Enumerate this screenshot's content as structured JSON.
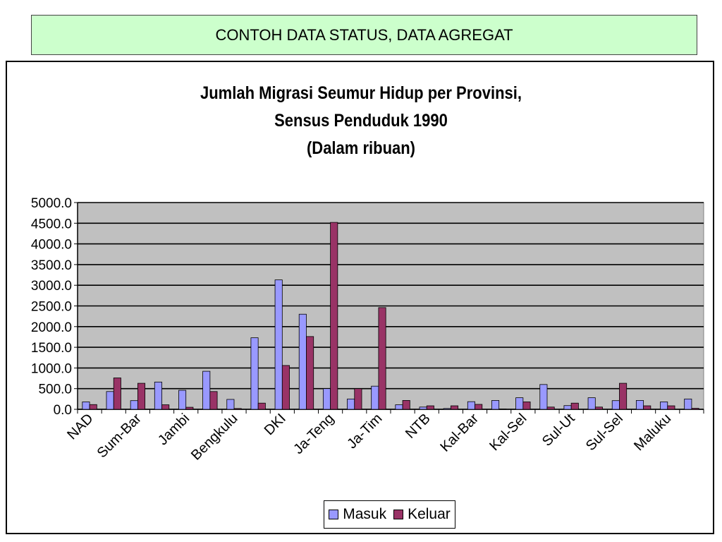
{
  "header": {
    "title": "CONTOH DATA STATUS, DATA AGREGAT"
  },
  "chart_data": {
    "type": "bar",
    "title_lines": [
      "Jumlah Migrasi Seumur Hidup per Provinsi,",
      "Sensus Penduduk 1990",
      "(Dalam ribuan)"
    ],
    "xlabel": "",
    "ylabel": "",
    "ylim": [
      0,
      5000
    ],
    "yticks": [
      "0.0",
      "500.0",
      "1000.0",
      "1500.0",
      "2000.0",
      "2500.0",
      "3000.0",
      "3500.0",
      "4000.0",
      "4500.0",
      "5000.0"
    ],
    "grid": true,
    "legend_position": "bottom",
    "category_labels": [
      "NAD",
      "Sum-Bar",
      "Jambi",
      "Bengkulu",
      "DKI",
      "Ja-Teng",
      "Ja-Tim",
      "NTB",
      "Kal-Bar",
      "Kal-Sel",
      "Sul-Ut",
      "Sul-Sel",
      "Maluku"
    ],
    "category_label_every": 2,
    "series": [
      {
        "name": "Masuk",
        "color": "#9999ff",
        "values": [
          180,
          430,
          210,
          660,
          460,
          920,
          240,
          1730,
          3130,
          2300,
          500,
          250,
          560,
          110,
          55,
          20,
          185,
          215,
          280,
          600,
          90,
          280,
          210,
          215,
          180,
          250
        ]
      },
      {
        "name": "Keluar",
        "color": "#993366",
        "values": [
          115,
          760,
          630,
          110,
          50,
          430,
          20,
          150,
          1060,
          1760,
          4520,
          500,
          2460,
          215,
          85,
          85,
          120,
          10,
          180,
          55,
          150,
          55,
          630,
          85,
          85,
          25
        ]
      }
    ],
    "plot_background": "#c0c0c0"
  }
}
